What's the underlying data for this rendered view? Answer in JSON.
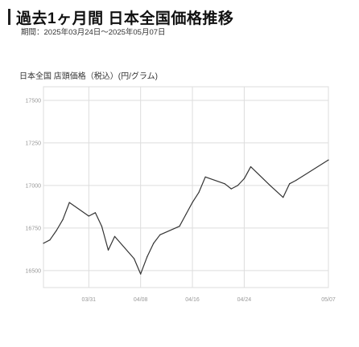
{
  "header": {
    "title": "過去1ヶ月間 日本全国価格推移",
    "period": "期間：2025年03月24日～2025年05月07日"
  },
  "chart_data": {
    "type": "line",
    "title": "日本全国 店頭価格（税込）(円/グラム)",
    "xlabel": "",
    "ylabel": "",
    "x_ticks": [
      "03/31",
      "04/08",
      "04/16",
      "04/24",
      "05/07"
    ],
    "y_ticks": [
      16500,
      16750,
      17000,
      17250,
      17500
    ],
    "ylim": [
      16400,
      17580
    ],
    "grid": true,
    "series": [
      {
        "color": "#333333",
        "x": [
          "03/24",
          "03/25",
          "03/26",
          "03/27",
          "03/28",
          "03/31",
          "04/01",
          "04/02",
          "04/03",
          "04/04",
          "04/07",
          "04/08",
          "04/09",
          "04/10",
          "04/11",
          "04/14",
          "04/15",
          "04/16",
          "04/17",
          "04/18",
          "04/21",
          "04/22",
          "04/23",
          "04/24",
          "04/25",
          "04/28",
          "04/30",
          "05/01",
          "05/02",
          "05/07"
        ],
        "values": [
          16660,
          16680,
          16735,
          16800,
          16900,
          16820,
          16840,
          16760,
          16620,
          16700,
          16570,
          16480,
          16580,
          16660,
          16710,
          16760,
          16830,
          16900,
          16960,
          17050,
          17010,
          16980,
          17000,
          17040,
          17110,
          17000,
          16930,
          17010,
          17030,
          17150
        ]
      }
    ]
  },
  "colors": {
    "grid": "#dddddd",
    "line": "#333333",
    "axis_text": "#999999"
  }
}
